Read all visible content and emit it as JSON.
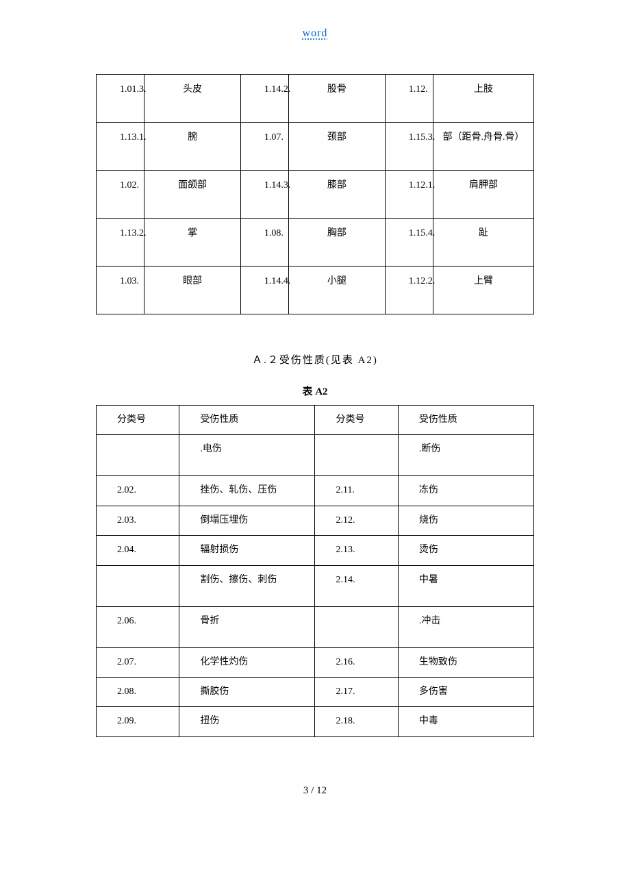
{
  "header": {
    "link_text": "word"
  },
  "table1": {
    "rows": [
      [
        "1.01.3.",
        "头皮",
        "1.14.2.",
        "股骨",
        "1.12.",
        "上肢"
      ],
      [
        "1.13.1.",
        "腕",
        "1.07.",
        "颈部",
        "1.15.3.",
        "部（距骨.舟骨.骨）"
      ],
      [
        "1.02.",
        "面颌部",
        "1.14.3.",
        "膝部",
        "1.12.1.",
        "肩胛部"
      ],
      [
        "1.13.2.",
        "掌",
        "1.08.",
        "胸部",
        "1.15.4.",
        "趾"
      ],
      [
        "1.03.",
        "眼部",
        "1.14.4.",
        "小腿",
        "1.12.2.",
        "上臂"
      ]
    ]
  },
  "section": {
    "title": "Ａ.２受伤性质(见表 A2)",
    "caption": "表 A2"
  },
  "table2": {
    "headers": [
      "分类号",
      "受伤性质",
      "分类号",
      "受伤性质"
    ],
    "rows": [
      {
        "cells": [
          "",
          ".电伤",
          "",
          ".断伤"
        ],
        "tall": true
      },
      {
        "cells": [
          "2.02.",
          "挫伤、轧伤、压伤",
          "2.11.",
          "冻伤"
        ]
      },
      {
        "cells": [
          "2.03.",
          "倒塌压埋伤",
          "2.12.",
          "烧伤"
        ]
      },
      {
        "cells": [
          "2.04.",
          "辐射损伤",
          "2.13.",
          "烫伤"
        ]
      },
      {
        "cells": [
          "",
          "割伤、擦伤、刺伤",
          "2.14.",
          "中暑"
        ],
        "tall": true
      },
      {
        "cells": [
          "2.06.",
          "骨折",
          "",
          ".冲击"
        ],
        "tall": true
      },
      {
        "cells": [
          "2.07.",
          "化学性灼伤",
          "2.16.",
          "生物致伤"
        ]
      },
      {
        "cells": [
          "2.08.",
          "撕胶伤",
          "2.17.",
          "多伤害"
        ]
      },
      {
        "cells": [
          "2.09.",
          "扭伤",
          "2.18.",
          "中毒"
        ]
      }
    ]
  },
  "footer": {
    "page": "3 / 12"
  },
  "colors": {
    "link_color": "#0563c1",
    "border_color": "#000000",
    "text_color": "#000000",
    "background": "#ffffff"
  },
  "typography": {
    "body_font": "SimSun, 宋体, serif",
    "base_fontsize": 15,
    "table_fontsize": 14
  }
}
